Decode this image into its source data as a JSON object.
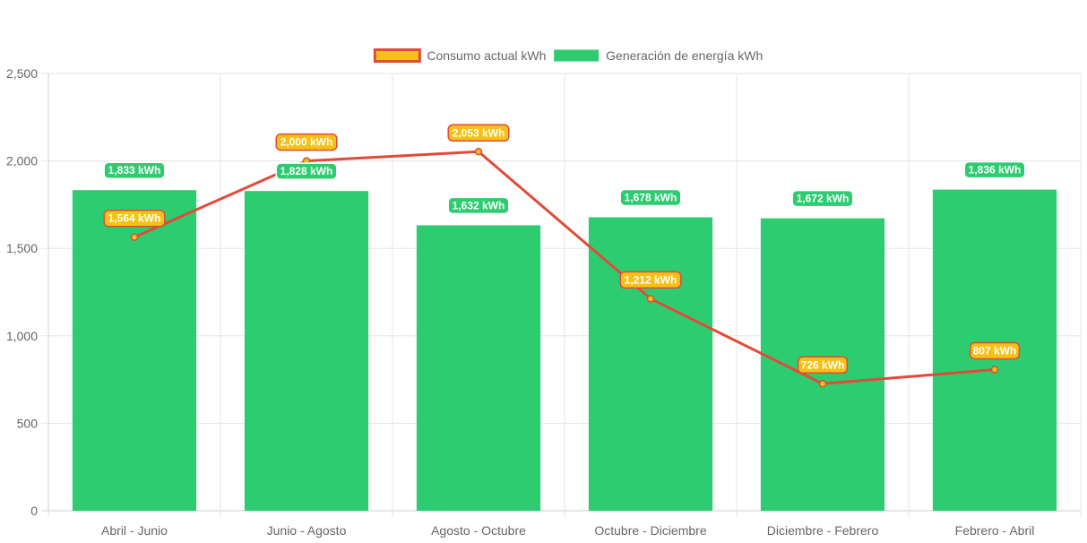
{
  "chart_data": {
    "type": "bar",
    "categories": [
      "Abril - Junio",
      "Junio - Agosto",
      "Agosto - Octubre",
      "Octubre - Diciembre",
      "Diciembre - Febrero",
      "Febrero - Abril"
    ],
    "series": [
      {
        "name": "Consumo actual kWh",
        "type": "line",
        "values": [
          1564,
          2000,
          2053,
          1212,
          726,
          807
        ],
        "labels": [
          "1,564 kWh",
          "2,000 kWh",
          "2,053 kWh",
          "1,212 kWh",
          "726 kWh",
          "807 kWh"
        ],
        "color": "#e04b3a",
        "fill": "#f5c116"
      },
      {
        "name": "Generación de energía kWh",
        "type": "bar",
        "values": [
          1833,
          1828,
          1632,
          1678,
          1672,
          1836
        ],
        "labels": [
          "1,833 kWh",
          "1,828 kWh",
          "1,632 kWh",
          "1,678 kWh",
          "1,672 kWh",
          "1,836 kWh"
        ],
        "color": "#2ecc71"
      }
    ],
    "yticks": [
      "0",
      "500",
      "1,000",
      "1,500",
      "2,000",
      "2,500"
    ],
    "ylim": [
      0,
      2500
    ],
    "grid": true,
    "legend": "top-center",
    "title": "",
    "xlabel": "",
    "ylabel": ""
  }
}
